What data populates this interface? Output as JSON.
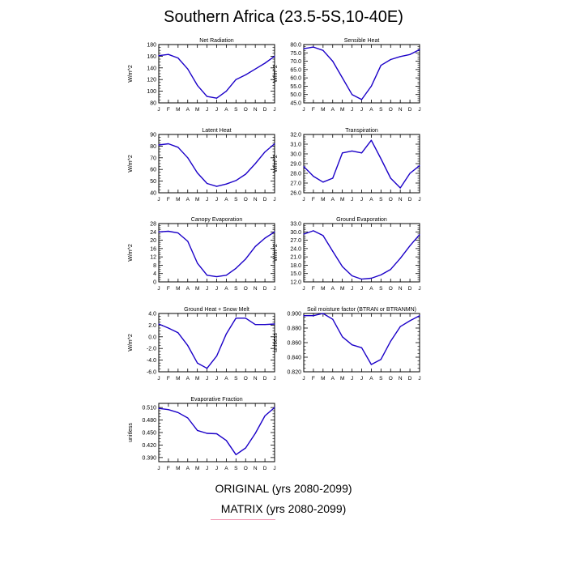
{
  "figure": {
    "title": "Southern Africa (23.5-5S,10-40E)",
    "legend": [
      {
        "label": "ORIGINAL (yrs 2080-2099)",
        "color": "#0000ff"
      },
      {
        "label": "MATRIX (yrs 2080-2099)",
        "color": "#f29ab4"
      }
    ],
    "months": [
      "J",
      "F",
      "M",
      "A",
      "M",
      "J",
      "J",
      "A",
      "S",
      "O",
      "N",
      "D",
      "J"
    ]
  },
  "chart_data": [
    {
      "type": "line",
      "title": "Net Radiation",
      "ylabel": "W/m^2",
      "xlabel": "",
      "ylim": [
        80,
        180
      ],
      "yticks": [
        "80",
        "100",
        "120",
        "140",
        "160",
        "180"
      ],
      "yticks_values": [
        80,
        100,
        120,
        140,
        160,
        180
      ],
      "x": [
        "J",
        "F",
        "M",
        "A",
        "M",
        "J",
        "J",
        "A",
        "S",
        "O",
        "N",
        "D",
        "J"
      ],
      "series": [
        {
          "values": [
            161,
            163,
            157,
            138,
            110,
            91,
            88,
            100,
            120,
            128,
            138,
            148,
            160
          ],
          "color": "#1b00c8"
        }
      ]
    },
    {
      "type": "line",
      "title": "Sensible Heat",
      "ylabel": "W/m^2",
      "xlabel": "",
      "ylim": [
        45,
        80
      ],
      "yticks": [
        "45.0",
        "50.0",
        "55.0",
        "60.0",
        "65.0",
        "70.0",
        "75.0",
        "80.0"
      ],
      "yticks_values": [
        45,
        50,
        55,
        60,
        65,
        70,
        75,
        80
      ],
      "x": [
        "J",
        "F",
        "M",
        "A",
        "M",
        "J",
        "J",
        "A",
        "S",
        "O",
        "N",
        "D",
        "J"
      ],
      "series": [
        {
          "values": [
            77.5,
            78.5,
            76.5,
            70,
            60,
            50,
            47,
            55,
            67.5,
            71,
            72.8,
            74,
            77
          ],
          "color": "#1b00c8"
        }
      ]
    },
    {
      "type": "line",
      "title": "Latent Heat",
      "ylabel": "W/m^2",
      "xlabel": "",
      "ylim": [
        40,
        90
      ],
      "yticks": [
        "40",
        "50",
        "60",
        "70",
        "80",
        "90"
      ],
      "yticks_values": [
        40,
        50,
        60,
        70,
        80,
        90
      ],
      "x": [
        "J",
        "F",
        "M",
        "A",
        "M",
        "J",
        "J",
        "A",
        "S",
        "O",
        "N",
        "D",
        "J"
      ],
      "series": [
        {
          "values": [
            81,
            82,
            79,
            70,
            57,
            48,
            45.5,
            47.5,
            50.5,
            56,
            65,
            75,
            82
          ],
          "color": "#1b00c8"
        }
      ]
    },
    {
      "type": "line",
      "title": "Transpiration",
      "ylabel": "W/m^2",
      "xlabel": "",
      "ylim": [
        26,
        32
      ],
      "yticks": [
        "26.0",
        "27.0",
        "28.0",
        "29.0",
        "30.0",
        "31.0",
        "32.0"
      ],
      "yticks_values": [
        26,
        27,
        28,
        29,
        30,
        31,
        32
      ],
      "x": [
        "J",
        "F",
        "M",
        "A",
        "M",
        "J",
        "J",
        "A",
        "S",
        "O",
        "N",
        "D",
        "J"
      ],
      "series": [
        {
          "values": [
            28.7,
            27.7,
            27.1,
            27.5,
            30.1,
            30.3,
            30.1,
            31.4,
            29.5,
            27.5,
            26.5,
            28.0,
            28.8
          ],
          "color": "#1b00c8"
        }
      ]
    },
    {
      "type": "line",
      "title": "Canopy Evaporation",
      "ylabel": "W/m^2",
      "xlabel": "",
      "ylim": [
        0,
        28
      ],
      "yticks": [
        "0",
        "4",
        "8",
        "12",
        "16",
        "20",
        "24",
        "28"
      ],
      "yticks_values": [
        0,
        4,
        8,
        12,
        16,
        20,
        24,
        28
      ],
      "x": [
        "J",
        "F",
        "M",
        "A",
        "M",
        "J",
        "J",
        "A",
        "S",
        "O",
        "N",
        "D",
        "J"
      ],
      "series": [
        {
          "values": [
            24,
            24.3,
            23.5,
            19.5,
            9,
            3.2,
            2.5,
            3.2,
            6.5,
            11,
            17,
            21,
            24
          ],
          "color": "#1b00c8"
        }
      ]
    },
    {
      "type": "line",
      "title": "Ground Evaporation",
      "ylabel": "W/m^2",
      "xlabel": "",
      "ylim": [
        12,
        33
      ],
      "yticks": [
        "12.0",
        "15.0",
        "18.0",
        "21.0",
        "24.0",
        "27.0",
        "30.0",
        "33.0"
      ],
      "yticks_values": [
        12,
        15,
        18,
        21,
        24,
        27,
        30,
        33
      ],
      "x": [
        "J",
        "F",
        "M",
        "A",
        "M",
        "J",
        "J",
        "A",
        "S",
        "O",
        "N",
        "D",
        "J"
      ],
      "series": [
        {
          "values": [
            29.2,
            30.4,
            28.7,
            23,
            17.5,
            14.2,
            13,
            13.3,
            14.5,
            16.5,
            20.5,
            25,
            29
          ],
          "color": "#1b00c8"
        }
      ]
    },
    {
      "type": "line",
      "title": "Ground Heat + Snow Melt",
      "ylabel": "W/m^2",
      "xlabel": "",
      "ylim": [
        -6,
        4
      ],
      "yticks": [
        "-6.0",
        "-4.0",
        "-2.0",
        "0.0",
        "2.0",
        "4.0"
      ],
      "yticks_values": [
        -6,
        -4,
        -2,
        0,
        2,
        4
      ],
      "x": [
        "J",
        "F",
        "M",
        "A",
        "M",
        "J",
        "J",
        "A",
        "S",
        "O",
        "N",
        "D",
        "J"
      ],
      "series": [
        {
          "values": [
            2.2,
            1.5,
            0.7,
            -1.5,
            -4.5,
            -5.4,
            -3.3,
            0.5,
            3.2,
            3.2,
            2.1,
            2.1,
            2.2
          ],
          "color": "#1b00c8"
        }
      ]
    },
    {
      "type": "line",
      "title": "Soil moisture factor (BTRAN or BTRANMN)",
      "ylabel": "unitless",
      "xlabel": "",
      "ylim": [
        0.82,
        0.9
      ],
      "yticks": [
        "0.820",
        "0.840",
        "0.860",
        "0.880",
        "0.900"
      ],
      "yticks_values": [
        0.82,
        0.84,
        0.86,
        0.88,
        0.9
      ],
      "x": [
        "J",
        "F",
        "M",
        "A",
        "M",
        "J",
        "J",
        "A",
        "S",
        "O",
        "N",
        "D",
        "J"
      ],
      "series": [
        {
          "values": [
            0.897,
            0.897,
            0.9,
            0.892,
            0.868,
            0.857,
            0.853,
            0.83,
            0.837,
            0.862,
            0.882,
            0.89,
            0.897
          ],
          "color": "#1b00c8"
        }
      ]
    },
    {
      "type": "line",
      "title": "Evaporative Fraction",
      "ylabel": "unitless",
      "xlabel": "",
      "ylim": [
        0.38,
        0.52
      ],
      "yticks": [
        "0.390",
        "0.420",
        "0.450",
        "0.480",
        "0.510"
      ],
      "yticks_values": [
        0.39,
        0.42,
        0.45,
        0.48,
        0.51
      ],
      "x": [
        "J",
        "F",
        "M",
        "A",
        "M",
        "J",
        "J",
        "A",
        "S",
        "O",
        "N",
        "D",
        "J"
      ],
      "series": [
        {
          "values": [
            0.508,
            0.505,
            0.498,
            0.485,
            0.455,
            0.448,
            0.447,
            0.431,
            0.397,
            0.413,
            0.448,
            0.49,
            0.51
          ],
          "color": "#1b00c8"
        }
      ]
    }
  ]
}
